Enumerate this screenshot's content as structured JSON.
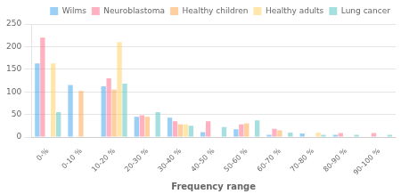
{
  "chart_data": {
    "type": "bar",
    "xlabel": "Frequency range",
    "categories": [
      "0-%",
      "0-10 %",
      "10-20 %",
      "20-30 %",
      "30-40 %",
      "40-50 %",
      "50-60 %",
      "60-70 %",
      "70-80 %",
      "80-90 %",
      "90-100 %"
    ],
    "series": [
      {
        "name": "Wilms",
        "values": [
          163,
          115,
          112,
          45,
          43,
          11,
          17,
          5,
          8,
          5,
          0
        ]
      },
      {
        "name": "Neuroblastoma",
        "values": [
          220,
          0,
          130,
          48,
          35,
          35,
          28,
          18,
          0,
          9,
          9
        ]
      },
      {
        "name": "Healthy children",
        "values": [
          0,
          102,
          105,
          45,
          28,
          0,
          30,
          15,
          0,
          0,
          0
        ]
      },
      {
        "name": "Healthy adults",
        "values": [
          163,
          0,
          210,
          0,
          28,
          0,
          0,
          0,
          10,
          0,
          0
        ]
      },
      {
        "name": "Lung cancer",
        "values": [
          55,
          0,
          118,
          55,
          25,
          22,
          37,
          10,
          5,
          5,
          5
        ]
      }
    ],
    "ylim": [
      0,
      250
    ],
    "yticks": [
      0,
      50,
      100,
      150,
      200,
      250
    ],
    "grid": true,
    "legend": "upper right"
  }
}
